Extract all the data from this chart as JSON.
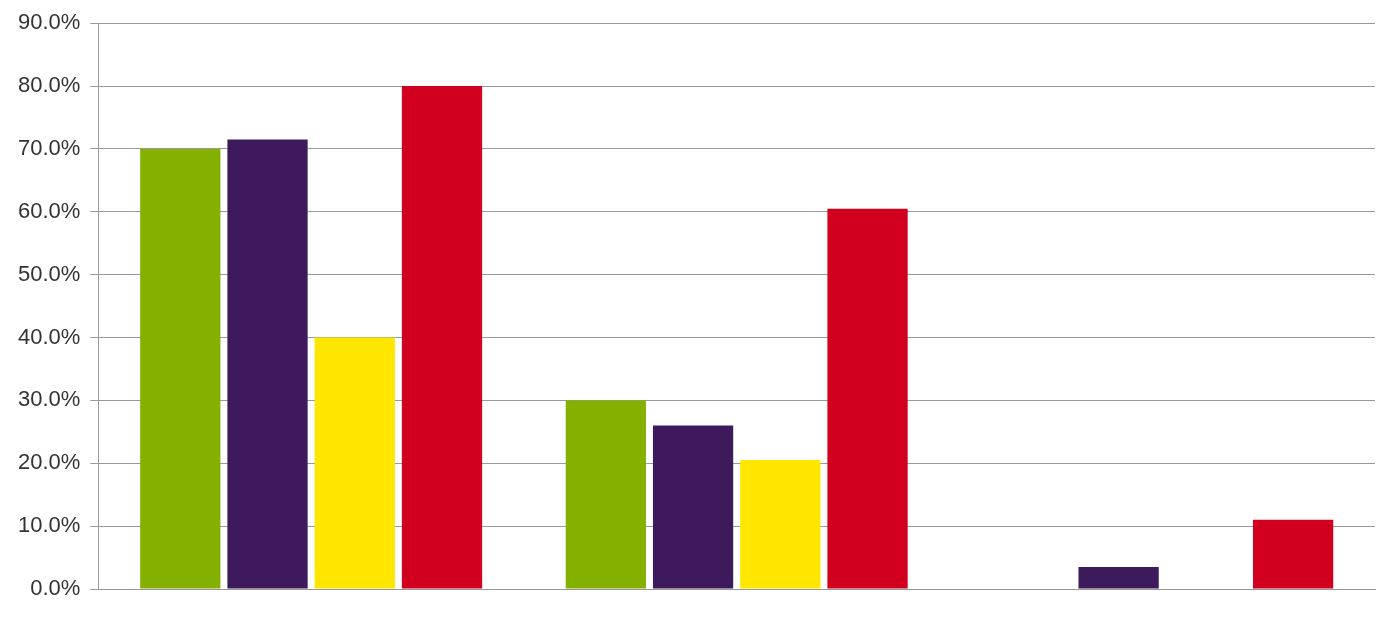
{
  "chart_data": {
    "type": "bar",
    "categories": [
      null,
      null,
      null
    ],
    "series": [
      {
        "color": "#84b000",
        "values": [
          70,
          30,
          0
        ]
      },
      {
        "color": "#3c1a5c",
        "values": [
          71.5,
          26,
          3.5
        ]
      },
      {
        "color": "#ffe600",
        "values": [
          40,
          20.5,
          0
        ]
      },
      {
        "color": "#d0001e",
        "values": [
          80,
          60.5,
          11
        ]
      }
    ],
    "ylim": [
      0,
      90
    ],
    "yticks": [
      {
        "value": 0,
        "label": "0.0%"
      },
      {
        "value": 10,
        "label": "10.0%"
      },
      {
        "value": 20,
        "label": "20.0%"
      },
      {
        "value": 30,
        "label": "30.0%"
      },
      {
        "value": 40,
        "label": "40.0%"
      },
      {
        "value": 50,
        "label": "50.0%"
      },
      {
        "value": 60,
        "label": "60.0%"
      },
      {
        "value": 70,
        "label": "70.0%"
      },
      {
        "value": 80,
        "label": "80.0%"
      },
      {
        "value": 90,
        "label": "90.0%"
      }
    ],
    "grid": "y",
    "legend": false
  }
}
